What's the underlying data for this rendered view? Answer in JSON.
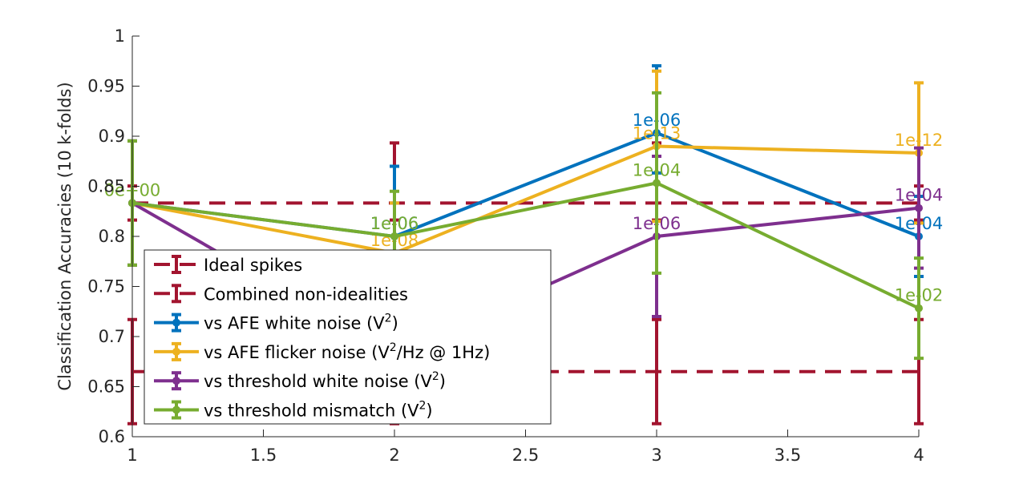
{
  "chart_data": {
    "type": "line",
    "title": "",
    "xlabel": "",
    "ylabel": "Classification Accuracies (10 k-folds)",
    "xlim": [
      1,
      4
    ],
    "ylim": [
      0.6,
      1
    ],
    "x_ticks": [
      1,
      1.5,
      2,
      2.5,
      3,
      3.5,
      4
    ],
    "x_tick_labels": [
      "1",
      "1.5",
      "2",
      "2.5",
      "3",
      "3.5",
      "4"
    ],
    "y_ticks": [
      0.6,
      0.65,
      0.7,
      0.75,
      0.8,
      0.85,
      0.9,
      0.95,
      1
    ],
    "y_tick_labels": [
      "0.6",
      "0.65",
      "0.7",
      "0.75",
      "0.8",
      "0.85",
      "0.9",
      "0.95",
      "1"
    ],
    "grid": false,
    "legend_position": "bottom-left",
    "series": [
      {
        "name": "Ideal spikes",
        "color": "#A2142F",
        "line_style": "dashed",
        "marker": "none",
        "x": [
          1,
          2,
          3,
          4
        ],
        "y": [
          0.8333,
          0.8333,
          0.8333,
          0.8333
        ],
        "err_low": [
          0.017,
          0.017,
          0.017,
          0.017
        ],
        "err_high": [
          0.017,
          0.06,
          0.06,
          0.017
        ],
        "labels": [
          "",
          "",
          "",
          ""
        ]
      },
      {
        "name": "Combined non-idealities",
        "color": "#A2142F",
        "line_style": "dashed",
        "marker": "none",
        "x": [
          1,
          2,
          3,
          4
        ],
        "y": [
          0.665,
          0.665,
          0.665,
          0.665
        ],
        "err_low": [
          0.052,
          0.052,
          0.052,
          0.052
        ],
        "err_high": [
          0.052,
          0.052,
          0.052,
          0.052
        ],
        "labels": [
          "",
          "",
          "",
          ""
        ]
      },
      {
        "name": "vs AFE white noise (V2)",
        "name_main": "vs AFE white noise (V",
        "name_sup": "2",
        "name_tail": ")",
        "color": "#0072BD",
        "line_style": "solid",
        "marker": "dot",
        "x": [
          1,
          2,
          3,
          4
        ],
        "y": [
          0.8333,
          0.8,
          0.9033,
          0.8
        ],
        "err_low": [
          0.062,
          0.05,
          0.04,
          0.04
        ],
        "err_high": [
          0.062,
          0.07,
          0.067,
          0.04
        ],
        "labels": [
          "",
          "1e-06",
          "1e-06",
          "1e-04"
        ]
      },
      {
        "name": "vs AFE flicker noise (V2/Hz @ 1Hz)",
        "name_main": "vs AFE flicker noise (V",
        "name_sup": "2",
        "name_tail": "/Hz @ 1Hz)",
        "color": "#EDB120",
        "line_style": "solid",
        "marker": "dot",
        "x": [
          1,
          2,
          3,
          4
        ],
        "y": [
          0.8333,
          0.7833,
          0.89,
          0.8833
        ],
        "err_low": [
          0.062,
          0.05,
          0.075,
          0.07
        ],
        "err_high": [
          0.062,
          0.05,
          0.075,
          0.07
        ],
        "labels": [
          "",
          "1e-08",
          "1e-13",
          "1e-12"
        ]
      },
      {
        "name": "vs threshold white noise (V2)",
        "name_main": "vs threshold white noise (V",
        "name_sup": "2",
        "name_tail": ")",
        "color": "#7E2F8E",
        "line_style": "solid",
        "marker": "dot",
        "x": [
          1,
          2,
          3,
          4
        ],
        "y": [
          0.8333,
          0.6833,
          0.8,
          0.8283
        ],
        "err_low": [
          0.062,
          0.05,
          0.08,
          0.06
        ],
        "err_high": [
          0.062,
          0.05,
          0.08,
          0.06
        ],
        "labels": [
          "",
          "",
          "1e-06",
          "1e-04"
        ]
      },
      {
        "name": "vs threshold mismatch (V2)",
        "name_main": "vs threshold mismatch (V",
        "name_sup": "2",
        "name_tail": ")",
        "color": "#77AC30",
        "line_style": "solid",
        "marker": "dot",
        "x": [
          1,
          2,
          3,
          4
        ],
        "y": [
          0.8333,
          0.8,
          0.8533,
          0.7283
        ],
        "err_low": [
          0.062,
          0.045,
          0.09,
          0.05
        ],
        "err_high": [
          0.062,
          0.045,
          0.09,
          0.05
        ],
        "labels": [
          "0e+00",
          "1e-06",
          "1e-04",
          "1e-02"
        ]
      }
    ]
  }
}
